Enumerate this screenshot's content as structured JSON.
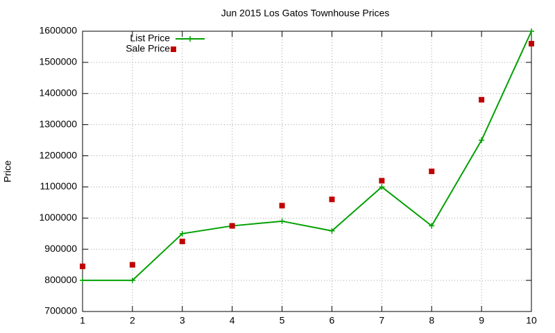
{
  "chart_data": {
    "type": "line",
    "title": "Jun 2015 Los Gatos Townhouse Prices",
    "y_label": "Price",
    "x": [
      1,
      2,
      3,
      4,
      5,
      6,
      7,
      8,
      9,
      10
    ],
    "series": [
      {
        "name": "List Price",
        "color": "#00a000",
        "style": "linespoints",
        "values": [
          800000,
          800000,
          950000,
          975000,
          990000,
          959000,
          1100000,
          975000,
          1250000,
          1600000
        ]
      },
      {
        "name": "Sale Price",
        "color": "#c00000",
        "style": "points",
        "values": [
          845000,
          850000,
          925000,
          975000,
          1040000,
          1060000,
          1120000,
          1150000,
          1380000,
          1560000
        ]
      }
    ],
    "xlim": [
      1,
      10
    ],
    "xticks": [
      1,
      2,
      3,
      4,
      5,
      6,
      7,
      8,
      9,
      10
    ],
    "ylim": [
      700000,
      1600000
    ],
    "yticks": [
      700000,
      800000,
      900000,
      1000000,
      1100000,
      1200000,
      1300000,
      1400000,
      1500000,
      1600000
    ],
    "grid": true,
    "legend": "top-left"
  }
}
